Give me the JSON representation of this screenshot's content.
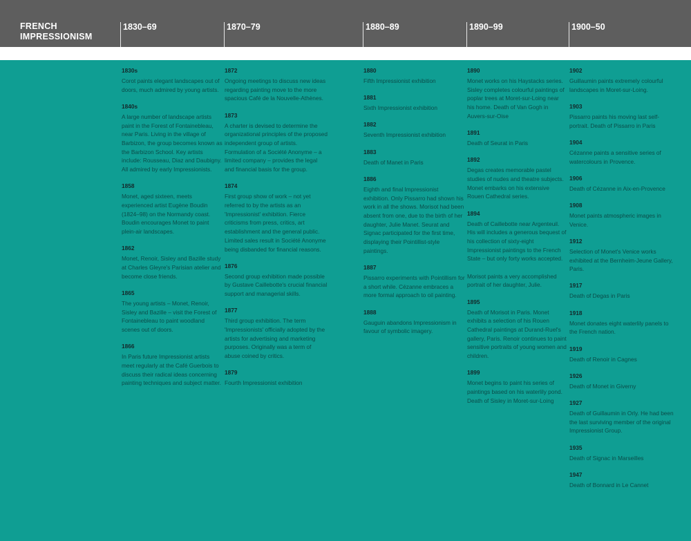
{
  "header": {
    "title_line1": "FRENCH",
    "title_line2": "IMPRESSIONISM",
    "periods": [
      "1830–69",
      "1870–79",
      "1880–89",
      "1890–99",
      "1900–50"
    ]
  },
  "colors": {
    "header": "#5e5e5e",
    "background": "#0f9e93",
    "text": "#0b4c49"
  },
  "columns": [
    {
      "entries": [
        {
          "year": "1830s",
          "text": "Corot paints elegant landscapes out of doors, much admired by young artists."
        },
        {
          "year": "1840s",
          "text": "A large number of landscape artists paint in the Forest of Fontainebleau, near Paris. Living in the village of Barbizon, the group becomes known as the Barbizon School. Key artists include: Rousseau, Diaz and Daubigny. All admired by early Impressionists."
        },
        {
          "year": "1858",
          "text": "Monet, aged sixteen, meets experienced artist Eugène Boudin (1824–98) on the Normandy coast. Boudin encourages Monet to paint plein-air landscapes."
        },
        {
          "year": "1862",
          "text": "Monet, Renoir, Sisley and Bazille study at Charles Gleyre's Parisian atelier and become close friends."
        },
        {
          "year": "1865",
          "text": "The young artists – Monet, Renoir, Sisley and Bazille – visit the Forest of Fontainebleau to paint woodland scenes out of doors."
        },
        {
          "year": "1866",
          "text": "In Paris future Impressionist artists meet regularly at the Café Guerbois to discuss their radical ideas concerning painting techniques and subject matter."
        }
      ]
    },
    {
      "entries": [
        {
          "year": "1872",
          "text": "Ongoing meetings to discuss new ideas regarding painting move to the more spacious Café de la Nouvelle-Athènes."
        },
        {
          "year": "1873",
          "text": "A charter is devised to determine the organizational principles of the proposed independent group of artists. Formulation of a Société Anonyme – a limited company – provides the legal and financial basis for the group."
        },
        {
          "year": "1874",
          "text": "First group show of work – not yet referred to by the artists as an 'Impressionist' exhibition. Fierce criticisms from press, critics, art establishment and the general public. Limited sales result in Société Anonyme being disbanded for financial reasons."
        },
        {
          "year": "1876",
          "text": "Second group exhibition made possible by Gustave Caillebotte's crucial financial support and managerial skills."
        },
        {
          "year": "1877",
          "text": "Third group exhibition. The term 'Impressionists' officially adopted by the artists for advertising and marketing purposes. Originally was a term of abuse coined by critics."
        },
        {
          "year": "1879",
          "text": "Fourth Impressionist exhibition"
        }
      ]
    },
    {
      "entries": [
        {
          "year": "1880",
          "text": "Fifth Impressionist exhibition"
        },
        {
          "year": "1881",
          "text": "Sixth Impressionist exhibition"
        },
        {
          "year": "1882",
          "text": "Seventh Impressionist exhibition"
        },
        {
          "year": "1883",
          "text": "Death of Manet in Paris"
        },
        {
          "year": "1886",
          "text": "Eighth and final Impressionist exhibition. Only Pissarro had shown his work in all the shows. Morisot had been absent from one, due to the birth of her daughter, Julie Manet. Seurat and Signac participated for the first time, displaying their Pointillist-style paintings."
        },
        {
          "year": "1887",
          "text": "Pissarro experiments with Pointillism for a short while. Cézanne embraces a more formal approach to oil painting."
        },
        {
          "year": "1888",
          "text": "Gauguin abandons Impressionism in favour of symbolic imagery."
        }
      ]
    },
    {
      "entries": [
        {
          "year": "1890",
          "text": "Monet works on his Haystacks series. Sisley completes colourful paintings of poplar trees at Moret-sur-Loing near his home. Death of Van Gogh in Auvers-sur-Oise"
        },
        {
          "year": "1891",
          "text": "Death of Seurat in Paris"
        },
        {
          "year": "1892",
          "text": "Degas creates memorable pastel studies of nudes and theatre subjects. Monet embarks on his extensive Rouen Cathedral series."
        },
        {
          "year": "1894",
          "text": "Death of Caillebotte near Argenteuil. His will includes a generous bequest of his collection of sixty-eight Impressionist paintings to the French State – but only forty works accepted.",
          "text2": "Morisot paints a very accomplished portrait of her daughter, Julie."
        },
        {
          "year": "1895",
          "text": "Death of Morisot in Paris. Monet exhibits a selection of his Rouen Cathedral paintings at Durand-Ruel's gallery, Paris. Renoir continues to paint sensitive portraits of young women and children."
        },
        {
          "year": "1899",
          "text": "Monet begins to paint his series of paintings based on his waterlily pond. Death of Sisley in Moret-sur-Loing"
        }
      ]
    },
    {
      "entries": [
        {
          "year": "1902",
          "text": "Guillaumin paints extremely colourful landscapes in Moret-sur-Loing."
        },
        {
          "year": "1903",
          "text": "Pissarro paints his moving last self-portrait. Death of Pissarro in Paris"
        },
        {
          "year": "1904",
          "text": "Cézanne paints a sensitive series of watercolours in Provence."
        },
        {
          "year": "1906",
          "text": "Death of Cézanne in Aix-en-Provence"
        },
        {
          "year": "1908",
          "text": "Monet paints atmospheric images in Venice."
        },
        {
          "year": "1912",
          "text": "Selection of Monet's Venice works exhibited at the Bernheim-Jeune Gallery, Paris."
        },
        {
          "year": "1917",
          "text": "Death of Degas in Paris"
        },
        {
          "year": "1918",
          "text": "Monet donates eight waterlily panels to the French nation."
        },
        {
          "year": "1919",
          "text": "Death of Renoir in Cagnes"
        },
        {
          "year": "1926",
          "text": "Death of Monet in Giverny"
        },
        {
          "year": "1927",
          "text": "Death of Guillaumin in Orly. He had been the last surviving member of the original Impressionist Group."
        },
        {
          "year": "1935",
          "text": "Death of Signac in Marseilles"
        },
        {
          "year": "1947",
          "text": "Death of Bonnard in Le Cannet"
        }
      ]
    }
  ]
}
